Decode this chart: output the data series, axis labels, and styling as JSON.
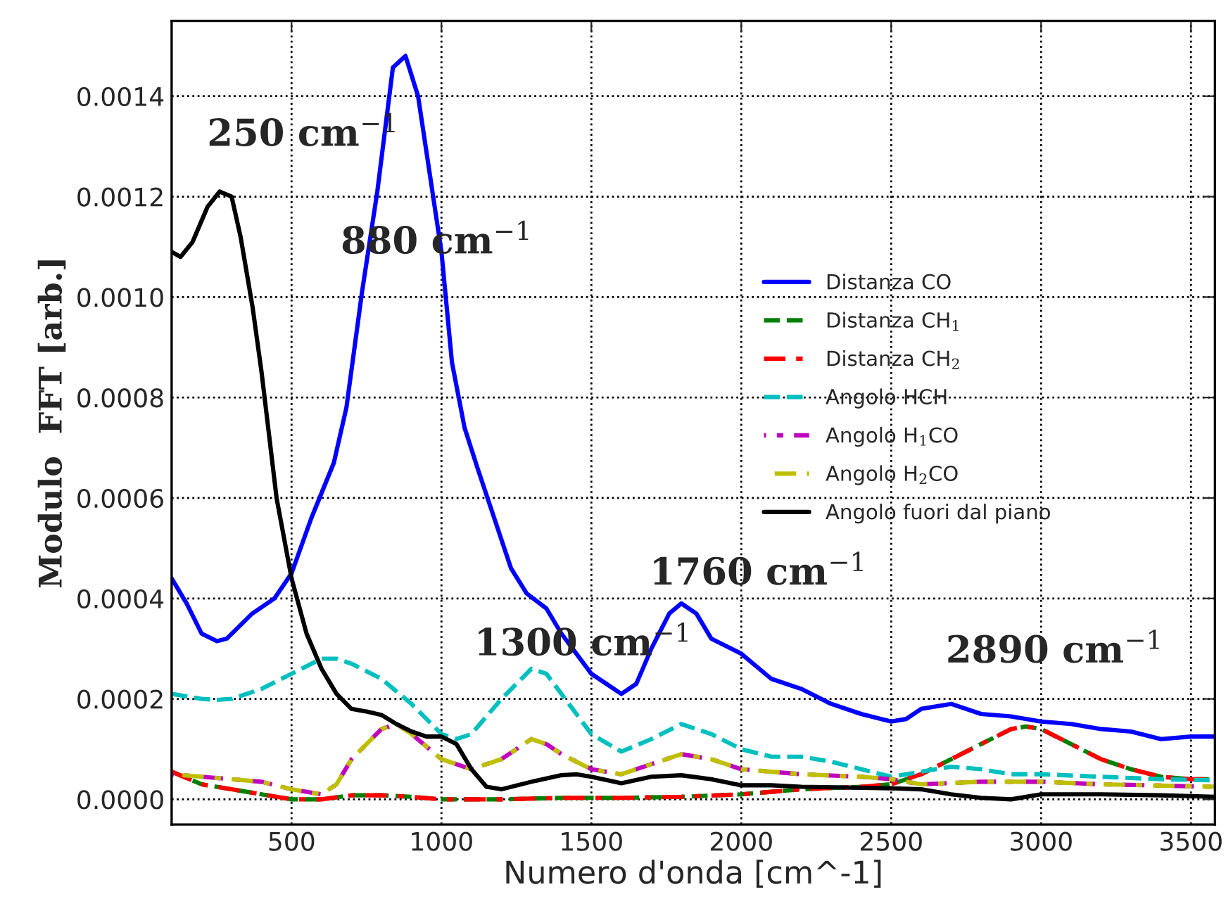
{
  "chart_data": {
    "type": "line",
    "xlabel": "Numero d'onda [cm^-1]",
    "ylabel": "Modulo  FFT [arb.]",
    "xlim": [
      100,
      3580
    ],
    "ylim": [
      -5e-05,
      0.00155
    ],
    "xticks": [
      500,
      1000,
      1500,
      2000,
      2500,
      3000,
      3500
    ],
    "yticks": [
      {
        "value": 0,
        "label": "0.0000"
      },
      {
        "value": 0.0002,
        "label": "0.0002"
      },
      {
        "value": 0.0004,
        "label": "0.0004"
      },
      {
        "value": 0.0006,
        "label": "0.0006"
      },
      {
        "value": 0.0008,
        "label": "0.0008"
      },
      {
        "value": 0.001,
        "label": "0.0010"
      },
      {
        "value": 0.0012,
        "label": "0.0012"
      },
      {
        "value": 0.0014,
        "label": "0.0014"
      }
    ],
    "grid": true,
    "legend": "right",
    "marker": "none",
    "annotations": [
      "250 cm$^{−1}$",
      "880 cm$^{−1}$",
      "1300 cm$^{−1}$",
      "1760 cm$^{−1}$",
      "2890 cm$^{−1}$"
    ],
    "series": [
      {
        "name": "Distanza CO",
        "color": "#0000ff",
        "line_style": "solid",
        "x": [
          100,
          150,
          200,
          251,
          284,
          369,
          443,
          500,
          566,
          641,
          683,
          735,
          786,
          838,
          880,
          922,
          1000,
          1035,
          1077,
          1120,
          1232,
          1284,
          1350,
          1400,
          1500,
          1550,
          1600,
          1650,
          1700,
          1760,
          1800,
          1850,
          1900,
          2000,
          2100,
          2200,
          2300,
          2400,
          2500,
          2550,
          2600,
          2700,
          2800,
          2900,
          3000,
          3100,
          3200,
          3300,
          3400,
          3500,
          3580
        ],
        "values": [
          0.00044,
          0.00039,
          0.00033,
          0.000315,
          0.00032,
          0.00037,
          0.0004,
          0.00045,
          0.00056,
          0.00067,
          0.00078,
          0.00101,
          0.00121,
          0.001457,
          0.00148,
          0.0014,
          0.00109,
          0.00087,
          0.00074,
          0.00066,
          0.00046,
          0.00041,
          0.00038,
          0.00033,
          0.00025,
          0.00023,
          0.00021,
          0.00023,
          0.0003,
          0.00037,
          0.00039,
          0.00037,
          0.00032,
          0.00029,
          0.00024,
          0.00022,
          0.00019,
          0.00017,
          0.000155,
          0.00016,
          0.00018,
          0.00019,
          0.00017,
          0.000165,
          0.000155,
          0.00015,
          0.00014,
          0.000135,
          0.00012,
          0.000125,
          0.000125
        ]
      },
      {
        "name": "Distanza CH$_{1}$",
        "color": "#008000",
        "line_style": "dashed",
        "x": [
          100,
          200,
          300,
          400,
          500,
          600,
          700,
          800,
          900,
          1000,
          1200,
          1400,
          1600,
          1800,
          2000,
          2200,
          2400,
          2500,
          2600,
          2700,
          2800,
          2900,
          2950,
          3000,
          3100,
          3200,
          3300,
          3400,
          3500,
          3580
        ],
        "values": [
          5.5e-05,
          3e-05,
          2e-05,
          1e-05,
          0.0,
          0.0,
          8e-06,
          8e-06,
          5e-06,
          0.0,
          0.0,
          3e-06,
          3e-06,
          5e-06,
          1e-05,
          2e-05,
          2.5e-05,
          3e-05,
          5e-05,
          8e-05,
          0.00011,
          0.00014,
          0.000145,
          0.00014,
          0.00011,
          8e-05,
          6e-05,
          4.5e-05,
          4e-05,
          4e-05
        ]
      },
      {
        "name": "Distanza CH$_{2}$",
        "color": "#ff0000",
        "line_style": "dashdot",
        "x": [
          100,
          200,
          300,
          400,
          500,
          600,
          700,
          800,
          900,
          1000,
          1200,
          1400,
          1600,
          1800,
          2000,
          2200,
          2400,
          2500,
          2600,
          2700,
          2800,
          2900,
          2950,
          3000,
          3100,
          3200,
          3300,
          3400,
          3500,
          3580
        ],
        "values": [
          5.5e-05,
          3e-05,
          2e-05,
          1e-05,
          0.0,
          0.0,
          8e-06,
          8e-06,
          5e-06,
          0.0,
          0.0,
          3e-06,
          3e-06,
          5e-06,
          1e-05,
          2e-05,
          2.5e-05,
          3e-05,
          5e-05,
          8e-05,
          0.00011,
          0.00014,
          0.000145,
          0.00014,
          0.00011,
          8e-05,
          6e-05,
          4.5e-05,
          4e-05,
          4e-05
        ]
      },
      {
        "name": "Angolo HCH",
        "color": "#00bfbf",
        "line_style": "dashed",
        "x": [
          100,
          200,
          250,
          300,
          400,
          500,
          600,
          650,
          700,
          800,
          900,
          1000,
          1050,
          1100,
          1200,
          1300,
          1350,
          1400,
          1500,
          1600,
          1700,
          1800,
          1900,
          2000,
          2100,
          2200,
          2300,
          2400,
          2500,
          2600,
          2700,
          2800,
          2900,
          3000,
          3200,
          3400,
          3580
        ],
        "values": [
          0.00021,
          0.0002,
          0.000198,
          0.0002,
          0.00022,
          0.00025,
          0.00028,
          0.00028,
          0.00027,
          0.00024,
          0.00019,
          0.00013,
          0.00012,
          0.00013,
          0.0002,
          0.00026,
          0.00025,
          0.00021,
          0.00013,
          9.5e-05,
          0.00012,
          0.00015,
          0.00013,
          0.0001,
          8.5e-05,
          8.5e-05,
          7.5e-05,
          6e-05,
          4.5e-05,
          5.5e-05,
          6.5e-05,
          6e-05,
          5e-05,
          5e-05,
          4.5e-05,
          4e-05,
          3.8e-05
        ]
      },
      {
        "name": "Angolo H$_{1}$CO",
        "color": "#bf00bf",
        "line_style": "dashdot",
        "x": [
          100,
          200,
          300,
          400,
          500,
          600,
          650,
          700,
          800,
          850,
          900,
          1000,
          1100,
          1200,
          1300,
          1350,
          1400,
          1500,
          1600,
          1700,
          1800,
          1900,
          2000,
          2100,
          2200,
          2400,
          2500,
          2600,
          2800,
          3000,
          3200,
          3580
        ],
        "values": [
          5e-05,
          4.5e-05,
          4e-05,
          3.5e-05,
          2e-05,
          1e-05,
          3e-05,
          8e-05,
          0.00014,
          0.00015,
          0.00013,
          8e-05,
          6e-05,
          8e-05,
          0.00012,
          0.00011,
          9e-05,
          6e-05,
          5e-05,
          7e-05,
          9e-05,
          8e-05,
          6e-05,
          5.5e-05,
          5e-05,
          4.5e-05,
          4e-05,
          3e-05,
          3.5e-05,
          3.5e-05,
          3e-05,
          2.5e-05
        ]
      },
      {
        "name": "Angolo H$_{2}$CO",
        "color": "#bfbf00",
        "line_style": "dashdot",
        "x": [
          100,
          200,
          300,
          400,
          500,
          600,
          650,
          700,
          800,
          850,
          900,
          1000,
          1100,
          1200,
          1300,
          1350,
          1400,
          1500,
          1600,
          1700,
          1800,
          1900,
          2000,
          2100,
          2200,
          2400,
          2500,
          2600,
          2800,
          3000,
          3200,
          3580
        ],
        "values": [
          5e-05,
          4.5e-05,
          4e-05,
          3.5e-05,
          2e-05,
          1e-05,
          3e-05,
          8e-05,
          0.00014,
          0.00015,
          0.00013,
          8e-05,
          6e-05,
          8e-05,
          0.00012,
          0.00011,
          9e-05,
          6e-05,
          5e-05,
          7e-05,
          9e-05,
          8e-05,
          6e-05,
          5.5e-05,
          5e-05,
          4.5e-05,
          4e-05,
          3e-05,
          3.5e-05,
          3.5e-05,
          3e-05,
          2.5e-05
        ]
      },
      {
        "name": "Angolo fuori dal piano",
        "color": "#000000",
        "line_style": "solid",
        "x": [
          100,
          130,
          170,
          220,
          260,
          300,
          330,
          370,
          400,
          450,
          500,
          550,
          600,
          650,
          700,
          750,
          800,
          850,
          900,
          950,
          1000,
          1050,
          1100,
          1150,
          1200,
          1300,
          1400,
          1450,
          1500,
          1600,
          1700,
          1800,
          1900,
          2000,
          2100,
          2200,
          2500,
          2600,
          2700,
          2800,
          2900,
          3000,
          3200,
          3400,
          3580
        ],
        "values": [
          0.00109,
          0.00108,
          0.00111,
          0.00118,
          0.00121,
          0.0012,
          0.00112,
          0.00098,
          0.00085,
          0.0006,
          0.00044,
          0.00033,
          0.00026,
          0.00021,
          0.00018,
          0.000175,
          0.000168,
          0.00015,
          0.000135,
          0.000125,
          0.000125,
          0.00011,
          6e-05,
          2.5e-05,
          2e-05,
          3.5e-05,
          4.8e-05,
          5e-05,
          4.5e-05,
          3.2e-05,
          4.5e-05,
          4.8e-05,
          4e-05,
          2.8e-05,
          2.8e-05,
          2.5e-05,
          2.2e-05,
          2e-05,
          1e-05,
          3e-06,
          0.0,
          1e-05,
          1e-05,
          8e-06,
          5e-06
        ]
      }
    ]
  }
}
